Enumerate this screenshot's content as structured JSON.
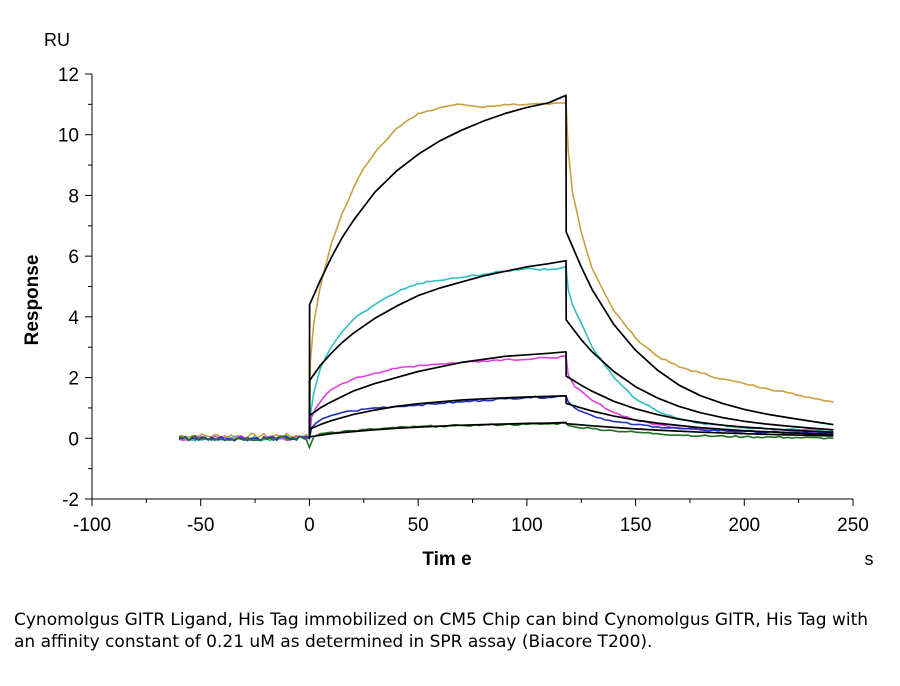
{
  "caption": "Cynomolgus GITR Ligand, His Tag immobilized on CM5 Chip can bind Cynomolgus GITR, His Tag with an affinity constant of 0.21 uM as determined in SPR assay (Biacore T200).",
  "chart_data": {
    "type": "line",
    "xlabel": "Tim e",
    "ylabel": "Response",
    "x_unit": "s",
    "y_unit": "RU",
    "xlim": [
      -100,
      250
    ],
    "ylim": [
      -2,
      12
    ],
    "x_ticks": [
      -100,
      -50,
      0,
      50,
      100,
      150,
      200,
      250
    ],
    "y_ticks": [
      -2,
      0,
      2,
      4,
      6,
      8,
      10,
      12
    ],
    "x_tick_labels": [
      "-100",
      "-50",
      "0",
      "50",
      "100",
      "150",
      "200",
      "250"
    ],
    "y_tick_labels": [
      "-2",
      "0",
      "2",
      "4",
      "6",
      "8",
      "10",
      "12"
    ],
    "legend": "none",
    "grid": false,
    "measured_series": [
      {
        "color": "#c8a040",
        "x": [
          0,
          0.5,
          2,
          5,
          10,
          15,
          20,
          25,
          30,
          40,
          50,
          60,
          70,
          80,
          90,
          100,
          110,
          118,
          119,
          120,
          121,
          125,
          130,
          140,
          150,
          160,
          170,
          180,
          190,
          200,
          210,
          220,
          230,
          241
        ],
        "y": [
          0,
          2.6,
          3.8,
          5.0,
          6.4,
          7.4,
          8.2,
          8.9,
          9.4,
          10.2,
          10.7,
          10.9,
          11.0,
          10.9,
          11.0,
          11.0,
          11.0,
          11.05,
          9.5,
          8.8,
          8.1,
          6.8,
          5.6,
          4.2,
          3.3,
          2.7,
          2.35,
          2.15,
          1.95,
          1.8,
          1.65,
          1.5,
          1.35,
          1.2
        ]
      },
      {
        "color": "#30c0c0",
        "x": [
          0,
          0.5,
          2,
          5,
          10,
          15,
          20,
          30,
          40,
          50,
          60,
          70,
          80,
          90,
          100,
          110,
          118,
          119,
          121,
          125,
          130,
          140,
          150,
          160,
          170,
          180,
          200,
          220,
          241
        ],
        "y": [
          0,
          0.8,
          1.5,
          2.3,
          3.0,
          3.5,
          3.9,
          4.4,
          4.8,
          5.1,
          5.2,
          5.3,
          5.4,
          5.5,
          5.6,
          5.55,
          5.65,
          4.9,
          4.4,
          3.8,
          3.0,
          2.0,
          1.3,
          0.9,
          0.65,
          0.5,
          0.35,
          0.3,
          0.25
        ]
      },
      {
        "color": "#e040e0",
        "x": [
          0,
          1,
          3,
          6,
          10,
          15,
          20,
          30,
          40,
          50,
          60,
          70,
          80,
          90,
          100,
          110,
          118,
          119,
          122,
          130,
          140,
          150,
          160,
          170,
          180,
          200,
          220,
          241
        ],
        "y": [
          0,
          0.7,
          1.0,
          1.3,
          1.6,
          1.8,
          1.95,
          2.15,
          2.3,
          2.4,
          2.45,
          2.5,
          2.55,
          2.6,
          2.6,
          2.65,
          2.7,
          2.1,
          1.7,
          1.25,
          0.85,
          0.6,
          0.45,
          0.35,
          0.3,
          0.25,
          0.2,
          0.2
        ]
      },
      {
        "color": "#2030c0",
        "x": [
          0,
          1,
          3,
          6,
          10,
          15,
          20,
          30,
          40,
          50,
          60,
          70,
          80,
          90,
          100,
          110,
          118,
          119,
          122,
          130,
          140,
          150,
          160,
          170,
          180,
          200,
          220,
          241
        ],
        "y": [
          0,
          0.35,
          0.5,
          0.65,
          0.75,
          0.85,
          0.9,
          1.0,
          1.05,
          1.1,
          1.15,
          1.2,
          1.25,
          1.3,
          1.35,
          1.35,
          1.4,
          1.2,
          1.0,
          0.75,
          0.55,
          0.45,
          0.38,
          0.32,
          0.28,
          0.22,
          0.18,
          0.15
        ]
      },
      {
        "color": "#207020",
        "x": [
          0,
          2,
          5,
          10,
          20,
          30,
          40,
          50,
          60,
          70,
          80,
          90,
          100,
          110,
          118,
          119,
          122,
          130,
          140,
          150,
          160,
          180,
          200,
          220,
          241
        ],
        "y": [
          -0.3,
          0.05,
          0.15,
          0.2,
          0.25,
          0.3,
          0.35,
          0.38,
          0.4,
          0.42,
          0.44,
          0.45,
          0.46,
          0.47,
          0.5,
          0.42,
          0.38,
          0.32,
          0.25,
          0.2,
          0.15,
          0.08,
          0.05,
          0.03,
          0.0
        ]
      }
    ],
    "fit_series": [
      {
        "color": "#000000",
        "x": [
          0,
          0.1,
          5,
          10,
          15,
          20,
          30,
          40,
          50,
          60,
          70,
          80,
          90,
          100,
          110,
          118,
          118.1,
          125,
          130,
          140,
          150,
          160,
          170,
          180,
          190,
          200,
          210,
          220,
          230,
          241
        ],
        "y": [
          0,
          4.4,
          5.2,
          5.95,
          6.6,
          7.15,
          8.1,
          8.8,
          9.35,
          9.8,
          10.15,
          10.45,
          10.7,
          10.9,
          11.05,
          11.3,
          6.8,
          5.65,
          4.9,
          3.75,
          2.9,
          2.25,
          1.75,
          1.4,
          1.15,
          0.95,
          0.8,
          0.68,
          0.57,
          0.45
        ]
      },
      {
        "color": "#000000",
        "x": [
          0,
          0.1,
          5,
          10,
          15,
          20,
          30,
          40,
          50,
          60,
          70,
          80,
          90,
          100,
          110,
          118,
          118.1,
          125,
          130,
          140,
          150,
          160,
          170,
          180,
          190,
          200,
          210,
          220,
          230,
          241
        ],
        "y": [
          0,
          1.9,
          2.4,
          2.8,
          3.15,
          3.45,
          3.95,
          4.35,
          4.7,
          4.95,
          5.15,
          5.35,
          5.5,
          5.65,
          5.75,
          5.85,
          3.9,
          3.25,
          2.85,
          2.2,
          1.7,
          1.33,
          1.05,
          0.84,
          0.68,
          0.56,
          0.47,
          0.4,
          0.34,
          0.28
        ]
      },
      {
        "color": "#000000",
        "x": [
          0,
          0.1,
          5,
          10,
          20,
          30,
          40,
          50,
          60,
          70,
          80,
          90,
          100,
          110,
          118,
          118.1,
          125,
          130,
          140,
          150,
          160,
          170,
          180,
          190,
          200,
          220,
          241
        ],
        "y": [
          0,
          0.75,
          1.0,
          1.2,
          1.55,
          1.8,
          2.0,
          2.2,
          2.35,
          2.5,
          2.6,
          2.7,
          2.75,
          2.8,
          2.85,
          2.05,
          1.75,
          1.55,
          1.22,
          0.97,
          0.78,
          0.63,
          0.52,
          0.43,
          0.37,
          0.27,
          0.2
        ]
      },
      {
        "color": "#000000",
        "x": [
          0,
          0.1,
          5,
          10,
          20,
          30,
          40,
          50,
          60,
          70,
          80,
          90,
          100,
          110,
          118,
          118.1,
          125,
          130,
          140,
          150,
          160,
          170,
          180,
          200,
          220,
          241
        ],
        "y": [
          0,
          0.3,
          0.45,
          0.58,
          0.78,
          0.93,
          1.05,
          1.14,
          1.2,
          1.26,
          1.3,
          1.33,
          1.36,
          1.38,
          1.4,
          1.15,
          1.0,
          0.9,
          0.73,
          0.6,
          0.5,
          0.42,
          0.35,
          0.25,
          0.18,
          0.12
        ]
      },
      {
        "color": "#000000",
        "x": [
          0,
          0.1,
          5,
          10,
          20,
          30,
          40,
          50,
          60,
          70,
          80,
          90,
          100,
          110,
          118,
          118.1,
          125,
          130,
          140,
          150,
          160,
          180,
          200,
          220,
          241
        ],
        "y": [
          0,
          0.05,
          0.1,
          0.15,
          0.22,
          0.28,
          0.33,
          0.37,
          0.4,
          0.43,
          0.45,
          0.47,
          0.49,
          0.5,
          0.52,
          0.48,
          0.44,
          0.41,
          0.36,
          0.31,
          0.27,
          0.2,
          0.15,
          0.11,
          0.08
        ]
      }
    ],
    "baseline": {
      "x_range": [
        -60,
        0
      ],
      "level": 0
    }
  }
}
